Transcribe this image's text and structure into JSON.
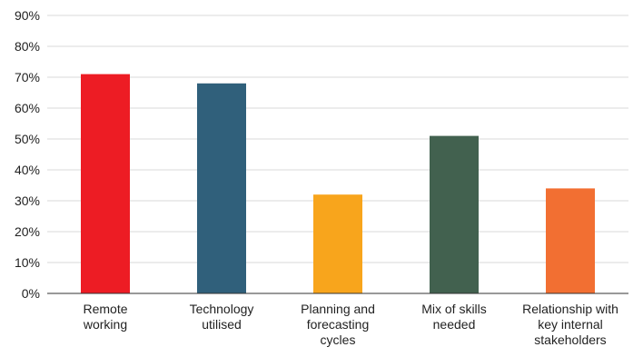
{
  "chart_data": {
    "type": "bar",
    "title": "",
    "xlabel": "",
    "ylabel": "",
    "categories": [
      [
        "Remote",
        "working"
      ],
      [
        "Technology",
        "utilised"
      ],
      [
        "Planning and",
        "forecasting",
        "cycles"
      ],
      [
        "Mix of skills",
        "needed"
      ],
      [
        "Relationship with",
        "key internal",
        "stakeholders"
      ]
    ],
    "values": [
      71,
      68,
      32,
      51,
      34
    ],
    "colors": [
      "#ed1c24",
      "#30607b",
      "#f8a51c",
      "#42614f",
      "#f26f32"
    ],
    "ylim": [
      0,
      90
    ],
    "yticks": [
      0,
      10,
      20,
      30,
      40,
      50,
      60,
      70,
      80,
      90
    ],
    "ytick_format": "%",
    "grid": true,
    "legend": "none"
  }
}
